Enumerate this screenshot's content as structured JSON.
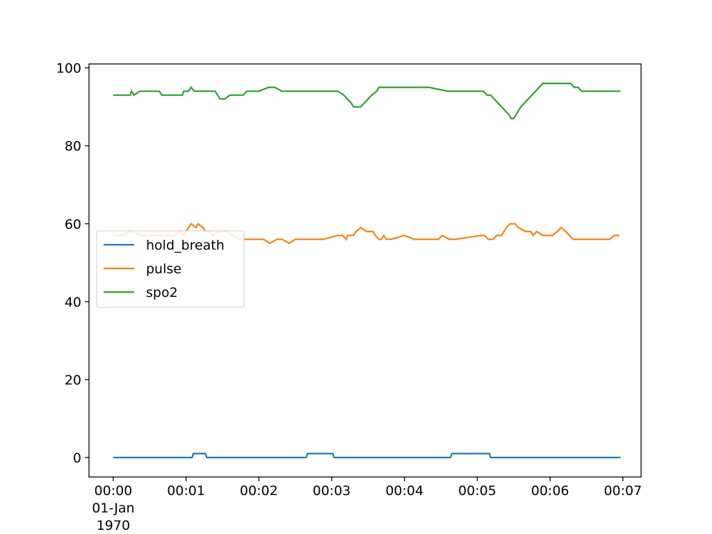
{
  "chart_data": {
    "type": "line",
    "title": "",
    "xlabel": "",
    "ylabel": "",
    "x_unit": "seconds",
    "xlim": [
      -20,
      435
    ],
    "ylim": [
      -5,
      101
    ],
    "x_ticks": [
      {
        "value": 0,
        "label": "00:00",
        "sublabel": "01-Jan",
        "sublabel2": "1970"
      },
      {
        "value": 60,
        "label": "00:01"
      },
      {
        "value": 120,
        "label": "00:02"
      },
      {
        "value": 180,
        "label": "00:03"
      },
      {
        "value": 240,
        "label": "00:04"
      },
      {
        "value": 300,
        "label": "00:05"
      },
      {
        "value": 360,
        "label": "00:06"
      },
      {
        "value": 420,
        "label": "00:07"
      }
    ],
    "y_ticks": [
      {
        "value": 0,
        "label": "0"
      },
      {
        "value": 20,
        "label": "20"
      },
      {
        "value": 40,
        "label": "40"
      },
      {
        "value": 60,
        "label": "60"
      },
      {
        "value": 80,
        "label": "80"
      },
      {
        "value": 100,
        "label": "100"
      }
    ],
    "grid": false,
    "legend_position": "center-left",
    "series": [
      {
        "name": "hold_breath",
        "color": "#1f77b4",
        "x": [
          0,
          65,
          66,
          76,
          77,
          159,
          160,
          181,
          182,
          278,
          279,
          310,
          311,
          418
        ],
        "y": [
          0,
          0,
          1,
          1,
          0,
          0,
          1,
          1,
          0,
          0,
          1,
          1,
          0,
          0
        ]
      },
      {
        "name": "pulse",
        "color": "#ff7f0e",
        "x": [
          0,
          7,
          14,
          24,
          34,
          50,
          55,
          58,
          62,
          64,
          68,
          70,
          74,
          76,
          79,
          82,
          86,
          90,
          94,
          98,
          104,
          114,
          120,
          124,
          129,
          135,
          139,
          145,
          150,
          162,
          173,
          185,
          187,
          189,
          192,
          193,
          198,
          200,
          204,
          209,
          214,
          216,
          219,
          221,
          223,
          225,
          229,
          240,
          248,
          251,
          253,
          259,
          268,
          271,
          277,
          282,
          303,
          306,
          309,
          313,
          316,
          320,
          324,
          327,
          331,
          334,
          340,
          344,
          346,
          349,
          354,
          357,
          360,
          362,
          366,
          369,
          373,
          376,
          379,
          383,
          388,
          397,
          409,
          413,
          415,
          417
        ],
        "y": [
          57,
          57,
          58,
          57,
          57,
          57,
          58,
          57,
          59,
          60,
          59,
          60,
          59,
          58,
          58,
          57,
          58,
          58,
          58,
          57,
          56,
          56,
          56,
          56,
          55,
          56,
          56,
          55,
          56,
          56,
          56,
          57,
          57,
          57,
          56,
          57,
          57,
          58,
          59,
          58,
          58,
          57,
          56,
          56,
          57,
          56,
          56,
          57,
          56,
          56,
          56,
          56,
          56,
          57,
          56,
          56,
          57,
          57,
          56,
          56,
          57,
          57,
          59,
          60,
          60,
          59,
          58,
          58,
          57,
          58,
          57,
          57,
          57,
          57,
          58,
          59,
          58,
          57,
          56,
          56,
          56,
          56,
          56,
          57,
          57,
          57
        ]
      },
      {
        "name": "spo2",
        "color": "#2ca02c",
        "x": [
          0,
          12,
          14,
          15,
          17,
          22,
          38,
          40,
          47,
          52,
          54,
          57,
          58,
          62,
          64,
          67,
          73,
          84,
          88,
          92,
          96,
          107,
          110,
          120,
          128,
          133,
          139,
          152,
          170,
          180,
          185,
          190,
          193,
          196,
          198,
          201,
          204,
          207,
          210,
          213,
          217,
          219,
          222,
          260,
          276,
          292,
          305,
          308,
          311,
          314,
          317,
          320,
          323,
          326,
          328,
          330,
          332,
          334,
          336,
          339,
          342,
          345,
          348,
          351,
          354,
          356,
          360,
          377,
          380,
          383,
          386,
          395,
          418
        ],
        "y": [
          93,
          93,
          93,
          94,
          93,
          94,
          94,
          93,
          93,
          93,
          93,
          93,
          94,
          94,
          95,
          94,
          94,
          94,
          92,
          92,
          93,
          93,
          94,
          94,
          95,
          95,
          94,
          94,
          94,
          94,
          94,
          93,
          92,
          91,
          90,
          90,
          90,
          91,
          92,
          93,
          94,
          95,
          95,
          95,
          94,
          94,
          94,
          93,
          93,
          92,
          91,
          90,
          89,
          88,
          87,
          87,
          88,
          89,
          90,
          91,
          92,
          93,
          94,
          95,
          96,
          96,
          96,
          96,
          95,
          95,
          94,
          94,
          94
        ]
      }
    ]
  }
}
